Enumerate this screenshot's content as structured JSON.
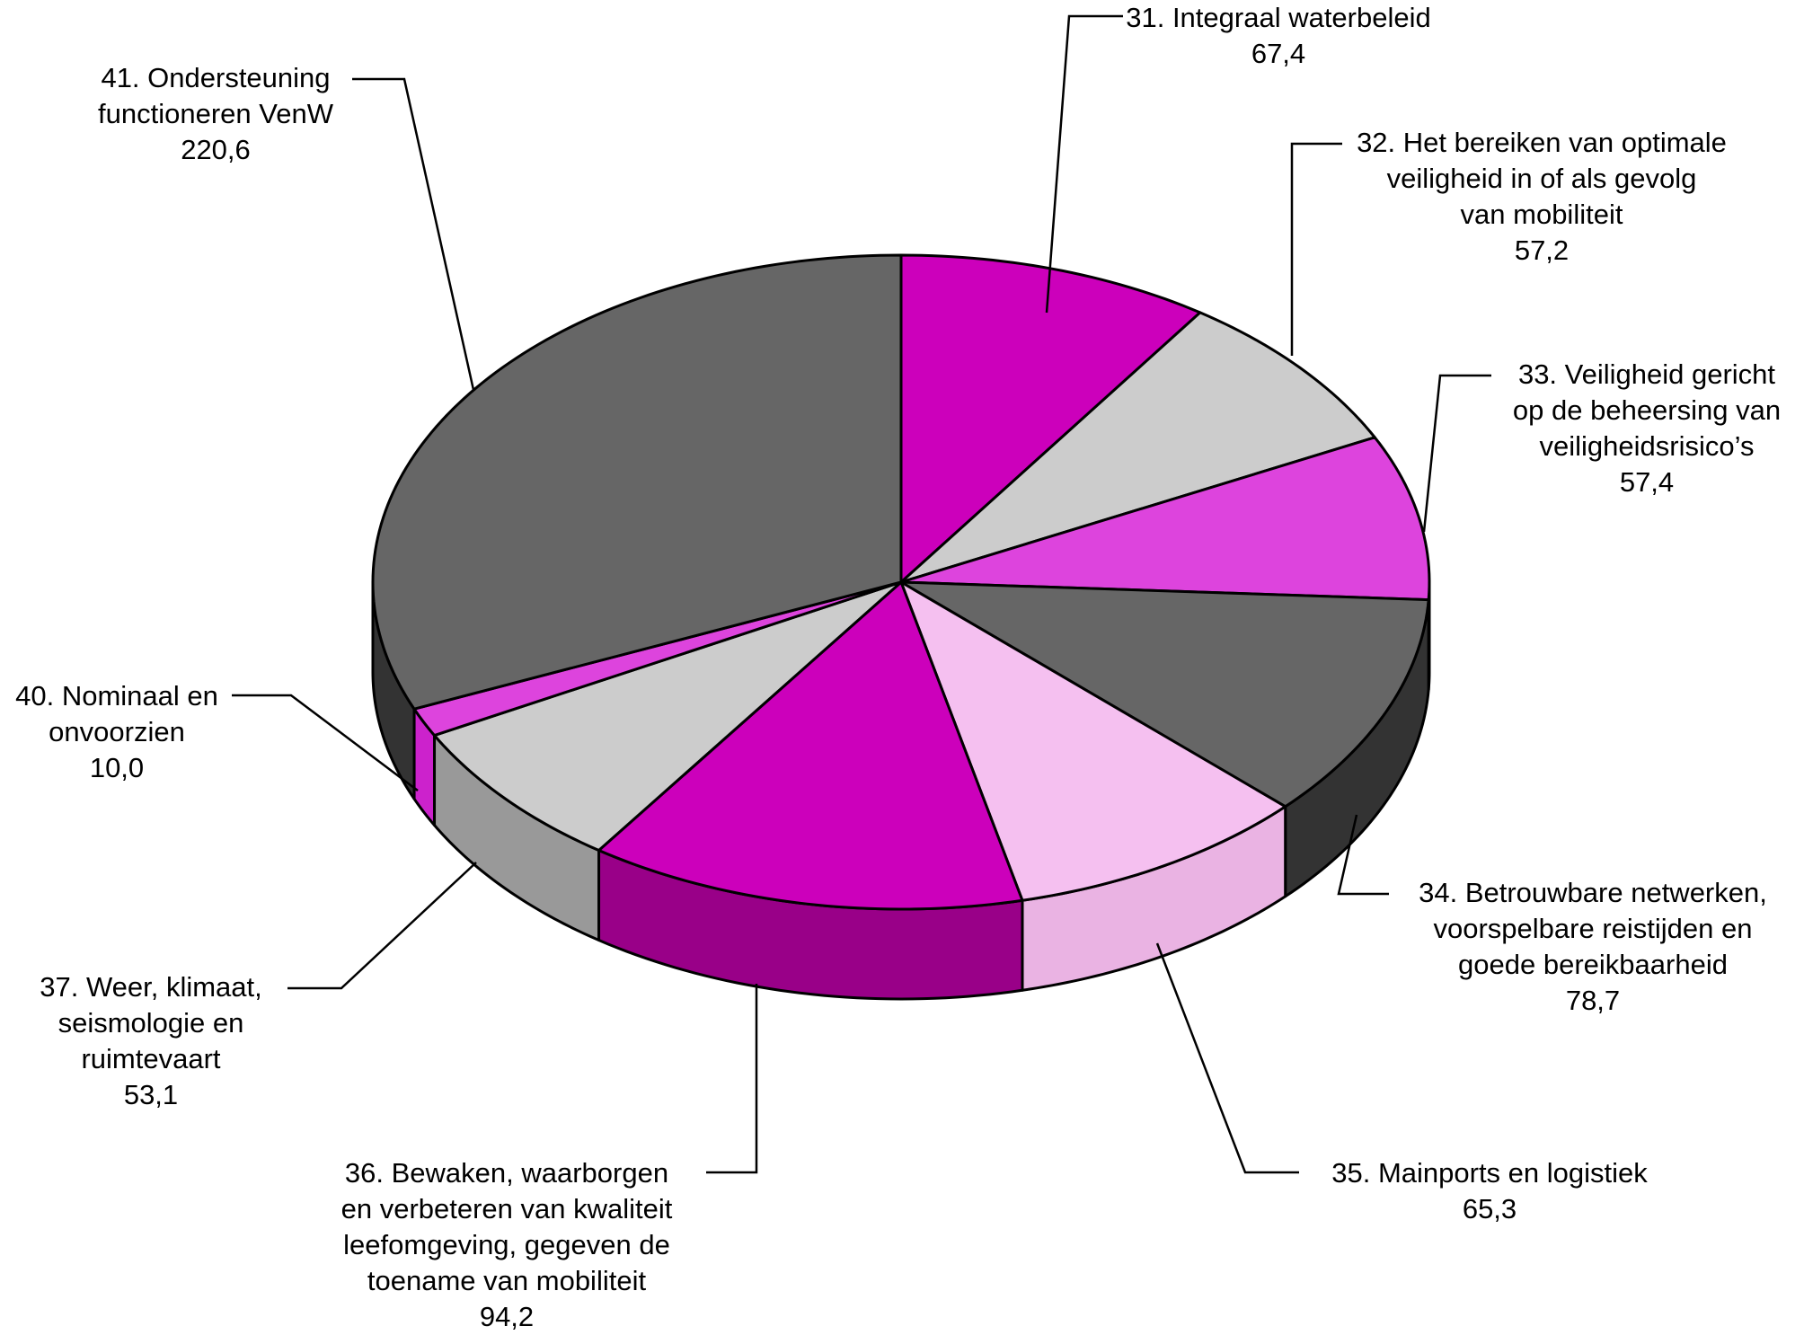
{
  "chart_data": {
    "type": "pie",
    "style": "3d-exploded-none",
    "start_angle": "12 o'clock, clockwise",
    "slices": [
      {
        "name": "31. Integraal waterbeleid",
        "value_label": "67,4",
        "value": 67.4,
        "color": "#cc00bb",
        "side_color": "#990088"
      },
      {
        "name": "32. Het bereiken van optimale\nveiligheid in of als gevolg\nvan mobiliteit",
        "value_label": "57,2",
        "value": 57.2,
        "color": "#cccccc",
        "side_color": "#999999"
      },
      {
        "name": "33. Veiligheid gericht\nop de beheersing van\nveiligheidsrisico’s",
        "value_label": "57,4",
        "value": 57.4,
        "color": "#dd44dd",
        "side_color": "#aa22aa"
      },
      {
        "name": "34. Betrouwbare netwerken,\nvoorspelbare reistijden en\ngoede bereikbaarheid",
        "value_label": "78,7",
        "value": 78.7,
        "color": "#666666",
        "side_color": "#333333"
      },
      {
        "name": "35. Mainports en logistiek",
        "value_label": "65,3",
        "value": 65.3,
        "color": "#f5c0f0",
        "side_color": "#eab3e3"
      },
      {
        "name": "36. Bewaken, waarborgen\nen verbeteren van kwaliteit\nleefomgeving, gegeven de\ntoename van mobiliteit",
        "value_label": "94,2",
        "value": 94.2,
        "color": "#cc00bb",
        "side_color": "#990088"
      },
      {
        "name": "37. Weer, klimaat,\nseismologie en\nruimtevaart",
        "value_label": "53,1",
        "value": 53.1,
        "color": "#cccccc",
        "side_color": "#999999"
      },
      {
        "name": "40. Nominaal en\nonvoorzien",
        "value_label": "10,0",
        "value": 10.0,
        "color": "#dd44dd",
        "side_color": "#cc22cc"
      },
      {
        "name": "41. Ondersteuning\nfunctioneren VenW",
        "value_label": "220,6",
        "value": 220.6,
        "color": "#666666",
        "side_color": "#333333"
      }
    ]
  }
}
